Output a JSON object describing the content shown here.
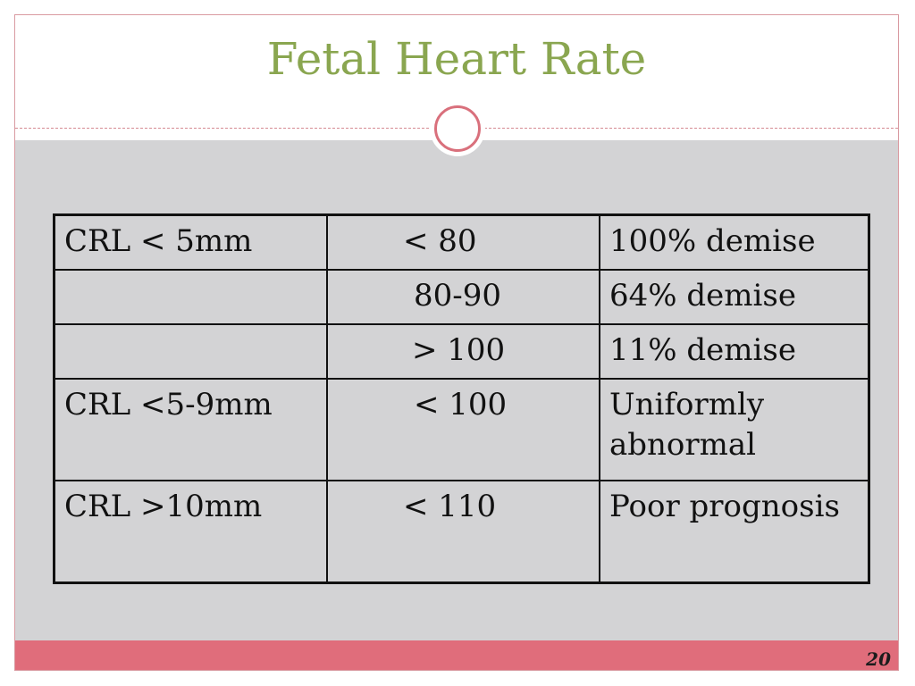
{
  "slide": {
    "title": "Fetal Heart Rate",
    "page_number": "20",
    "colors": {
      "title": "#8aa650",
      "body_background": "#d3d3d5",
      "footer_band": "#e06d7b",
      "accent": "#d9707c"
    }
  },
  "table": {
    "rows": [
      {
        "crl": "CRL < 5mm",
        "rate": "< 80",
        "outcome": "100% demise"
      },
      {
        "crl": "",
        "rate": "80-90",
        "outcome": "64% demise"
      },
      {
        "crl": "",
        "rate": "> 100",
        "outcome": "11% demise"
      },
      {
        "crl": "CRL <5-9mm",
        "rate": "< 100",
        "outcome": "Uniformly abnormal"
      },
      {
        "crl": "CRL >10mm",
        "rate": "< 110",
        "outcome": "Poor prognosis"
      }
    ]
  }
}
